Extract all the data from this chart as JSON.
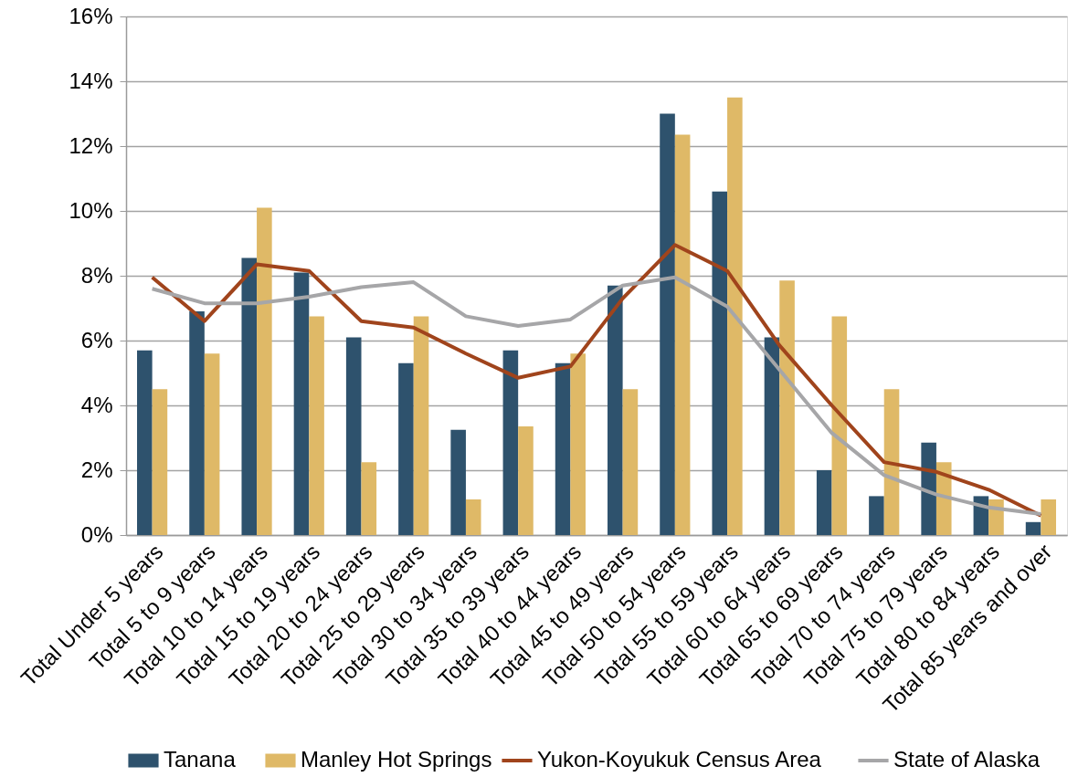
{
  "chart_data": {
    "type": "bar",
    "categories": [
      "Total Under 5 years",
      "Total 5 to 9 years",
      "Total 10 to 14 years",
      "Total 15 to 19 years",
      "Total 20 to 24 years",
      "Total 25 to 29 years",
      "Total 30 to 34 years",
      "Total 35 to 39 years",
      "Total 40 to 44 years",
      "Total 45 to 49 years",
      "Total 50 to 54 years",
      "Total 55 to 59 years",
      "Total 60 to 64 years",
      "Total 65 to 69 years",
      "Total 70 to 74 years",
      "Total 75 to 79 years",
      "Total 80 to 84 years",
      "Total 85 years and over"
    ],
    "series": [
      {
        "name": "Tanana",
        "color": "#2e526d",
        "values": [
          5.7,
          6.9,
          8.55,
          8.1,
          6.1,
          5.3,
          3.25,
          5.7,
          5.3,
          7.7,
          13.0,
          10.6,
          6.1,
          2.0,
          1.2,
          2.85,
          1.2,
          0.4
        ]
      },
      {
        "name": "Manley Hot Springs",
        "color": "#dfb967",
        "values": [
          4.5,
          5.6,
          10.1,
          6.75,
          2.25,
          6.75,
          1.1,
          3.35,
          5.6,
          4.5,
          12.35,
          13.5,
          7.85,
          6.75,
          4.5,
          2.25,
          1.1,
          1.1
        ]
      },
      {
        "name": "Yukon-Koyukuk Census Area",
        "type": "line",
        "color": "#a0441c",
        "values": [
          7.95,
          6.6,
          8.35,
          8.15,
          6.6,
          6.4,
          5.6,
          4.85,
          5.2,
          7.3,
          8.95,
          8.15,
          5.85,
          4.0,
          2.25,
          1.95,
          1.4,
          0.6
        ]
      },
      {
        "name": "State of Alaska",
        "type": "line",
        "color": "#a6a6a8",
        "values": [
          7.6,
          7.15,
          7.15,
          7.35,
          7.65,
          7.8,
          6.75,
          6.45,
          6.65,
          7.7,
          7.95,
          7.05,
          5.1,
          3.15,
          1.85,
          1.25,
          0.85,
          0.65
        ]
      }
    ],
    "ylim": [
      0,
      16
    ],
    "yticks": [
      {
        "value": 0,
        "label": "0%"
      },
      {
        "value": 2,
        "label": "2%"
      },
      {
        "value": 4,
        "label": "4%"
      },
      {
        "value": 6,
        "label": "6%"
      },
      {
        "value": 8,
        "label": "8%"
      },
      {
        "value": 10,
        "label": "10%"
      },
      {
        "value": 12,
        "label": "12%"
      },
      {
        "value": 14,
        "label": "14%"
      },
      {
        "value": 16,
        "label": "16%"
      }
    ],
    "grid": "y",
    "legend": "bottom"
  }
}
